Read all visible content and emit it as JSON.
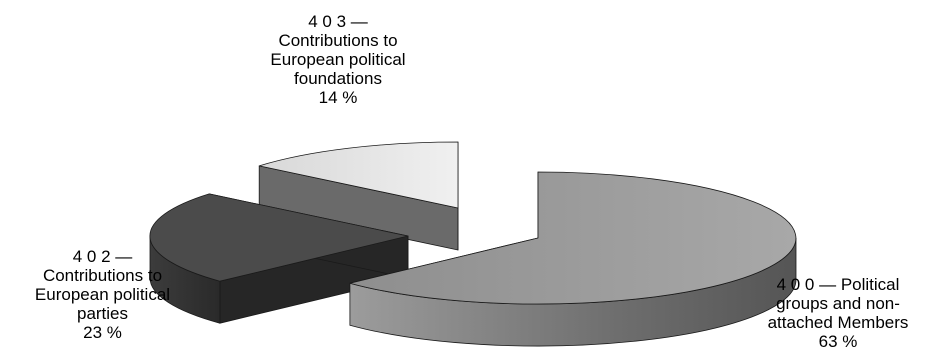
{
  "chart_data": {
    "type": "pie",
    "slices": [
      {
        "code": "4 0 0 —",
        "name": "Political groups and non-attached Members",
        "value": 63,
        "pct_label": "63 %",
        "color": "#9a9a9a"
      },
      {
        "code": "4 0 2 —",
        "name": "Contributions to European political parties",
        "value": 23,
        "pct_label": "23 %",
        "color": "#4a4a4a"
      },
      {
        "code": "4 0 3 —",
        "name": "Contributions to European political foundations",
        "value": 14,
        "pct_label": "14 %",
        "color": "#e6e6e6"
      }
    ],
    "labels": {
      "s400": {
        "lines": [
          "4 0 0 — Political",
          "groups and non-",
          "attached Members",
          "63 %"
        ]
      },
      "s402": {
        "lines": [
          "4 0 2 —",
          "Contributions to",
          "European political",
          "parties",
          "23 %"
        ]
      },
      "s403": {
        "lines": [
          "4 0 3 —",
          "Contributions to",
          "European political",
          "foundations",
          "14 %"
        ]
      }
    },
    "style": "3d-exploded"
  }
}
